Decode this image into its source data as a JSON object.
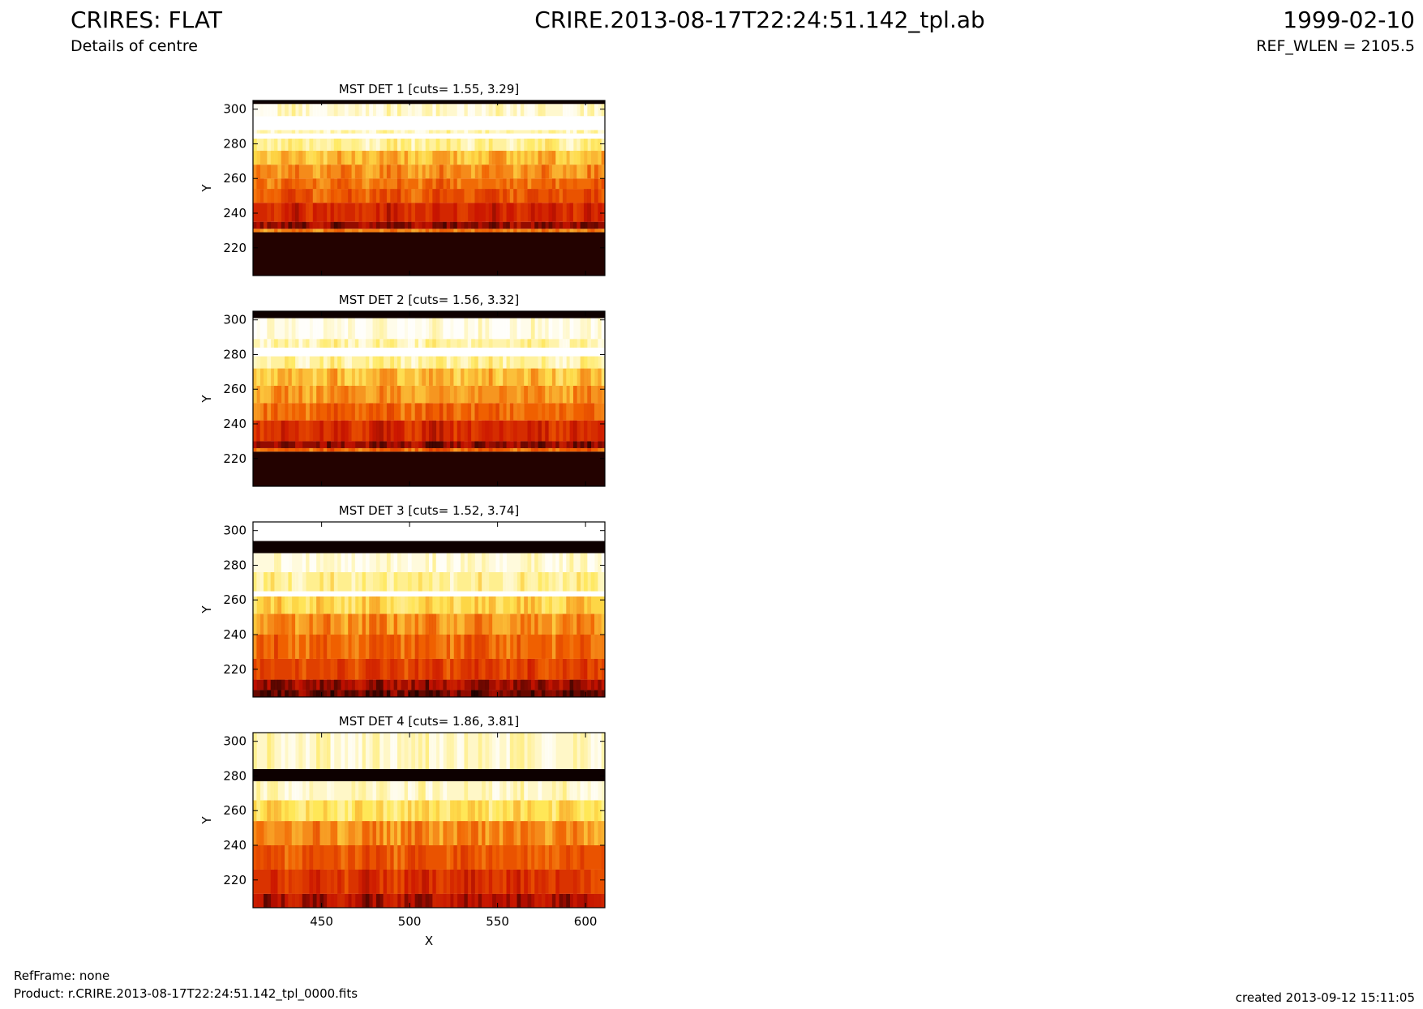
{
  "header": {
    "title": "CRIRES: FLAT",
    "subtitle": "Details of centre",
    "file": "CRIRE.2013-08-17T22:24:51.142_tpl.ab",
    "date": "1999-02-10",
    "ref_wlen": "REF_WLEN = 2105.5"
  },
  "footer": {
    "refframe": "RefFrame: none",
    "product": "Product: r.CRIRE.2013-08-17T22:24:51.142_tpl_0000.fits",
    "created": "created 2013-09-12 15:11:05"
  },
  "colors": {
    "heat_dark": "#0d0000",
    "heat_red": "#c81000",
    "heat_orange": "#f06000",
    "heat_yellow": "#ffe650",
    "heat_white": "#ffffff"
  },
  "chart_data": [
    {
      "type": "heatmap",
      "title": "MST DET 1 [cuts= 1.55, 3.29]",
      "xlabel": "",
      "ylabel": "Y",
      "xlim": [
        411,
        611
      ],
      "ylim": [
        204,
        305
      ],
      "yticks": [
        220,
        240,
        260,
        280,
        300
      ],
      "xticks": [],
      "bands": [
        {
          "y0": 204,
          "y1": 229,
          "level": 0.03
        },
        {
          "y0": 229,
          "y1": 231,
          "level": 0.55
        },
        {
          "y0": 231,
          "y1": 235,
          "level": 0.18
        },
        {
          "y0": 235,
          "y1": 246,
          "level": 0.32
        },
        {
          "y0": 246,
          "y1": 254,
          "level": 0.46
        },
        {
          "y0": 254,
          "y1": 260,
          "level": 0.52
        },
        {
          "y0": 260,
          "y1": 268,
          "level": 0.58
        },
        {
          "y0": 268,
          "y1": 276,
          "level": 0.66
        },
        {
          "y0": 276,
          "y1": 283,
          "level": 0.86
        },
        {
          "y0": 283,
          "y1": 286,
          "level": 1.0
        },
        {
          "y0": 286,
          "y1": 288,
          "level": 0.9
        },
        {
          "y0": 288,
          "y1": 296,
          "level": 1.0
        },
        {
          "y0": 296,
          "y1": 303,
          "level": 0.93
        },
        {
          "y0": 303,
          "y1": 305,
          "level": 0.0
        }
      ]
    },
    {
      "type": "heatmap",
      "title": "MST DET 2 [cuts= 1.56, 3.32]",
      "xlabel": "",
      "ylabel": "Y",
      "xlim": [
        411,
        611
      ],
      "ylim": [
        204,
        305
      ],
      "yticks": [
        220,
        240,
        260,
        280,
        300
      ],
      "xticks": [],
      "bands": [
        {
          "y0": 204,
          "y1": 224,
          "level": 0.03
        },
        {
          "y0": 224,
          "y1": 226,
          "level": 0.5
        },
        {
          "y0": 226,
          "y1": 230,
          "level": 0.18
        },
        {
          "y0": 230,
          "y1": 242,
          "level": 0.34
        },
        {
          "y0": 242,
          "y1": 252,
          "level": 0.5
        },
        {
          "y0": 252,
          "y1": 262,
          "level": 0.6
        },
        {
          "y0": 262,
          "y1": 272,
          "level": 0.68
        },
        {
          "y0": 272,
          "y1": 279,
          "level": 0.86
        },
        {
          "y0": 279,
          "y1": 284,
          "level": 1.0
        },
        {
          "y0": 284,
          "y1": 289,
          "level": 0.88
        },
        {
          "y0": 289,
          "y1": 301,
          "level": 0.97
        },
        {
          "y0": 301,
          "y1": 305,
          "level": 0.0
        }
      ]
    },
    {
      "type": "heatmap",
      "title": "MST DET 3 [cuts= 1.52, 3.74]",
      "xlabel": "",
      "ylabel": "Y",
      "xlim": [
        411,
        611
      ],
      "ylim": [
        204,
        305
      ],
      "yticks": [
        220,
        240,
        260,
        280,
        300
      ],
      "xticks": [],
      "bands": [
        {
          "y0": 204,
          "y1": 208,
          "level": 0.12
        },
        {
          "y0": 208,
          "y1": 214,
          "level": 0.2
        },
        {
          "y0": 214,
          "y1": 226,
          "level": 0.4
        },
        {
          "y0": 226,
          "y1": 240,
          "level": 0.5
        },
        {
          "y0": 240,
          "y1": 252,
          "level": 0.58
        },
        {
          "y0": 252,
          "y1": 262,
          "level": 0.72
        },
        {
          "y0": 262,
          "y1": 265,
          "level": 1.0
        },
        {
          "y0": 265,
          "y1": 276,
          "level": 0.84
        },
        {
          "y0": 276,
          "y1": 287,
          "level": 0.95
        },
        {
          "y0": 287,
          "y1": 294,
          "level": 0.0
        },
        {
          "y0": 294,
          "y1": 305,
          "level": 1.0
        }
      ]
    },
    {
      "type": "heatmap",
      "title": "MST DET 4 [cuts= 1.86, 3.81]",
      "xlabel": "X",
      "ylabel": "Y",
      "xlim": [
        411,
        611
      ],
      "ylim": [
        204,
        305
      ],
      "yticks": [
        220,
        240,
        260,
        280,
        300
      ],
      "xticks": [
        450,
        500,
        550,
        600
      ],
      "bands": [
        {
          "y0": 204,
          "y1": 212,
          "level": 0.22
        },
        {
          "y0": 212,
          "y1": 226,
          "level": 0.36
        },
        {
          "y0": 226,
          "y1": 240,
          "level": 0.46
        },
        {
          "y0": 240,
          "y1": 254,
          "level": 0.58
        },
        {
          "y0": 254,
          "y1": 266,
          "level": 0.76
        },
        {
          "y0": 266,
          "y1": 277,
          "level": 0.92
        },
        {
          "y0": 277,
          "y1": 284,
          "level": 0.0
        },
        {
          "y0": 284,
          "y1": 305,
          "level": 0.92
        }
      ]
    }
  ]
}
